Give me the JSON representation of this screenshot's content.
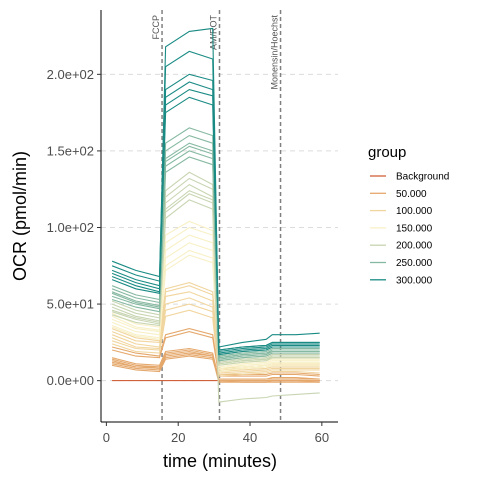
{
  "chart_data": {
    "type": "line",
    "title": "",
    "xlabel": "time (minutes)",
    "ylabel": "OCR (pmol/min)",
    "xlim": [
      -1.5,
      64.5
    ],
    "ylim": [
      -27,
      242
    ],
    "x": [
      1.6,
      8.2,
      14.8,
      16.5,
      23.1,
      29.6,
      31.3,
      37.9,
      44.5,
      46.2,
      52.8,
      59.4
    ],
    "xticks": [
      0,
      20,
      40,
      60
    ],
    "xtick_labels": [
      "0",
      "20",
      "40",
      "60"
    ],
    "yticks": [
      0,
      50,
      100,
      150,
      200
    ],
    "ytick_labels": [
      "0.0e+00",
      "5.0e+01",
      "1.0e+02",
      "1.5e+02",
      "2.0e+02"
    ],
    "grid": "horizontal dashed",
    "legend_position": "right",
    "legend_title": "group",
    "vlines": [
      {
        "x": 15.5,
        "label": "FCCP"
      },
      {
        "x": 31.5,
        "label": "AM/ROT"
      },
      {
        "x": 48.5,
        "label": "Monensin/Hoechst"
      }
    ],
    "groups": [
      {
        "name": "Background",
        "color": "#d2603a"
      },
      {
        "name": "50.000",
        "color": "#e5a86c"
      },
      {
        "name": "100.000",
        "color": "#f1d59e"
      },
      {
        "name": "150.000",
        "color": "#f8f0c6"
      },
      {
        "name": "200.000",
        "color": "#c8d5b2"
      },
      {
        "name": "250.000",
        "color": "#86b9a1"
      },
      {
        "name": "300.000",
        "color": "#1a8b84"
      }
    ],
    "series": [
      {
        "group": "Background",
        "values": [
          0,
          0,
          0,
          0,
          0,
          0,
          0,
          0,
          0,
          0,
          0,
          0
        ]
      },
      {
        "group": "50.000",
        "values": [
          12,
          9,
          8,
          16,
          18,
          16,
          0,
          0,
          0,
          0,
          0,
          0
        ]
      },
      {
        "group": "50.000",
        "values": [
          14,
          10,
          9,
          18,
          20,
          17,
          1,
          1,
          1,
          1,
          1,
          1
        ]
      },
      {
        "group": "50.000",
        "values": [
          10,
          7,
          6,
          14,
          16,
          14,
          0,
          -1,
          -1,
          0,
          0,
          -1
        ]
      },
      {
        "group": "50.000",
        "values": [
          15,
          11,
          10,
          19,
          21,
          18,
          1,
          1,
          1,
          2,
          2,
          1
        ]
      },
      {
        "group": "50.000",
        "values": [
          13,
          9,
          9,
          17,
          19,
          16,
          0,
          0,
          0,
          0,
          0,
          0
        ]
      },
      {
        "group": "50.000",
        "values": [
          11,
          8,
          7,
          15,
          17,
          15,
          -1,
          -1,
          -1,
          -1,
          -1,
          -1
        ]
      },
      {
        "group": "50.000",
        "values": [
          22,
          18,
          16,
          30,
          34,
          30,
          4,
          4,
          4,
          5,
          5,
          4
        ]
      },
      {
        "group": "50.000",
        "values": [
          20,
          16,
          15,
          28,
          32,
          28,
          3,
          3,
          3,
          4,
          4,
          3
        ]
      },
      {
        "group": "100.000",
        "values": [
          28,
          22,
          21,
          50,
          54,
          48,
          5,
          6,
          7,
          8,
          8,
          8
        ]
      },
      {
        "group": "100.000",
        "values": [
          30,
          24,
          22,
          55,
          58,
          52,
          6,
          7,
          8,
          9,
          9,
          9
        ]
      },
      {
        "group": "100.000",
        "values": [
          26,
          21,
          20,
          46,
          50,
          45,
          4,
          5,
          6,
          7,
          7,
          7
        ]
      },
      {
        "group": "100.000",
        "values": [
          32,
          26,
          25,
          58,
          62,
          56,
          7,
          8,
          9,
          10,
          10,
          10
        ]
      },
      {
        "group": "100.000",
        "values": [
          24,
          19,
          18,
          42,
          46,
          41,
          3,
          4,
          5,
          6,
          6,
          5
        ]
      },
      {
        "group": "100.000",
        "values": [
          34,
          28,
          26,
          60,
          64,
          58,
          8,
          9,
          10,
          11,
          11,
          11
        ]
      },
      {
        "group": "150.000",
        "values": [
          38,
          32,
          30,
          80,
          90,
          85,
          8,
          10,
          11,
          12,
          12,
          12
        ]
      },
      {
        "group": "150.000",
        "values": [
          40,
          34,
          32,
          85,
          95,
          90,
          9,
          11,
          12,
          13,
          13,
          13
        ]
      },
      {
        "group": "150.000",
        "values": [
          36,
          30,
          28,
          75,
          85,
          80,
          7,
          9,
          10,
          11,
          11,
          11
        ]
      },
      {
        "group": "150.000",
        "values": [
          42,
          35,
          33,
          90,
          100,
          95,
          10,
          12,
          13,
          14,
          14,
          14
        ]
      },
      {
        "group": "150.000",
        "values": [
          35,
          29,
          27,
          72,
          82,
          77,
          6,
          8,
          9,
          10,
          10,
          10
        ]
      },
      {
        "group": "150.000",
        "values": [
          44,
          37,
          35,
          95,
          104,
          98,
          11,
          13,
          14,
          15,
          15,
          15
        ]
      },
      {
        "group": "200.000",
        "values": [
          45,
          40,
          37,
          110,
          122,
          116,
          10,
          12,
          13,
          15,
          15,
          15
        ]
      },
      {
        "group": "200.000",
        "values": [
          48,
          42,
          39,
          116,
          128,
          120,
          11,
          13,
          14,
          16,
          16,
          16
        ]
      },
      {
        "group": "200.000",
        "values": [
          50,
          44,
          41,
          120,
          132,
          125,
          12,
          14,
          15,
          17,
          17,
          17
        ]
      },
      {
        "group": "200.000",
        "values": [
          43,
          38,
          36,
          106,
          118,
          112,
          -14,
          -12,
          -11,
          -10,
          -9,
          -8
        ]
      },
      {
        "group": "200.000",
        "values": [
          52,
          46,
          43,
          124,
          136,
          128,
          13,
          15,
          16,
          18,
          18,
          18
        ]
      },
      {
        "group": "200.000",
        "values": [
          46,
          41,
          38,
          112,
          124,
          118,
          11,
          13,
          14,
          15,
          15,
          15
        ]
      },
      {
        "group": "250.000",
        "values": [
          55,
          50,
          47,
          140,
          150,
          145,
          14,
          16,
          17,
          19,
          19,
          19
        ]
      },
      {
        "group": "250.000",
        "values": [
          58,
          52,
          49,
          145,
          155,
          150,
          15,
          17,
          18,
          20,
          20,
          20
        ]
      },
      {
        "group": "250.000",
        "values": [
          60,
          54,
          51,
          150,
          160,
          155,
          16,
          18,
          19,
          21,
          21,
          21
        ]
      },
      {
        "group": "250.000",
        "values": [
          53,
          48,
          45,
          136,
          146,
          141,
          13,
          15,
          16,
          18,
          18,
          18
        ]
      },
      {
        "group": "250.000",
        "values": [
          62,
          56,
          53,
          155,
          165,
          160,
          17,
          19,
          20,
          22,
          22,
          22
        ]
      },
      {
        "group": "250.000",
        "values": [
          57,
          51,
          48,
          143,
          153,
          148,
          15,
          17,
          18,
          19,
          19,
          19
        ]
      },
      {
        "group": "300.000",
        "values": [
          68,
          62,
          58,
          180,
          190,
          186,
          18,
          20,
          21,
          23,
          23,
          23
        ]
      },
      {
        "group": "300.000",
        "values": [
          72,
          66,
          62,
          190,
          200,
          196,
          20,
          22,
          23,
          25,
          25,
          25
        ]
      },
      {
        "group": "300.000",
        "values": [
          78,
          72,
          68,
          205,
          215,
          210,
          22,
          25,
          27,
          30,
          30,
          31
        ]
      },
      {
        "group": "300.000",
        "values": [
          70,
          64,
          60,
          185,
          195,
          190,
          19,
          21,
          22,
          24,
          24,
          24
        ]
      },
      {
        "group": "300.000",
        "values": [
          75,
          69,
          65,
          218,
          228,
          230,
          20,
          22,
          23,
          25,
          25,
          25
        ]
      },
      {
        "group": "300.000",
        "values": [
          66,
          60,
          57,
          175,
          185,
          180,
          17,
          19,
          20,
          22,
          22,
          22
        ]
      }
    ]
  }
}
